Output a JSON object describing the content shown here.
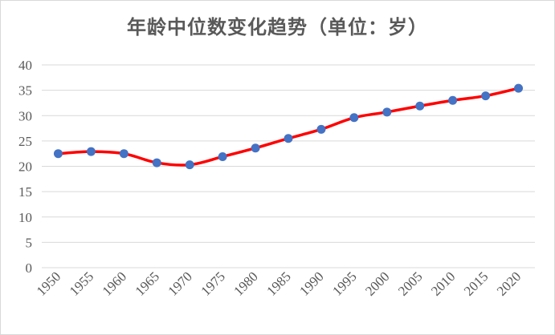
{
  "chart_data": {
    "type": "line",
    "title": "年龄中位数变化趋势（单位：岁）",
    "x": [
      1950,
      1955,
      1960,
      1965,
      1970,
      1975,
      1980,
      1985,
      1990,
      1995,
      2000,
      2005,
      2010,
      2015,
      2020
    ],
    "series": [
      {
        "values": [
          22.5,
          22.9,
          22.5,
          20.7,
          20.3,
          21.9,
          23.6,
          25.5,
          27.3,
          29.6,
          30.7,
          31.9,
          33.0,
          33.9,
          35.4
        ],
        "line_color": "#ff0000",
        "marker_color": "#4472c4",
        "smooth": true
      }
    ],
    "ylim": [
      0,
      40
    ],
    "yticks": [
      0,
      5,
      10,
      15,
      20,
      25,
      30,
      35,
      40
    ],
    "xlabel": "",
    "ylabel": "",
    "grid": true,
    "legend": "none",
    "gridline_color": "#d9d9d9"
  }
}
